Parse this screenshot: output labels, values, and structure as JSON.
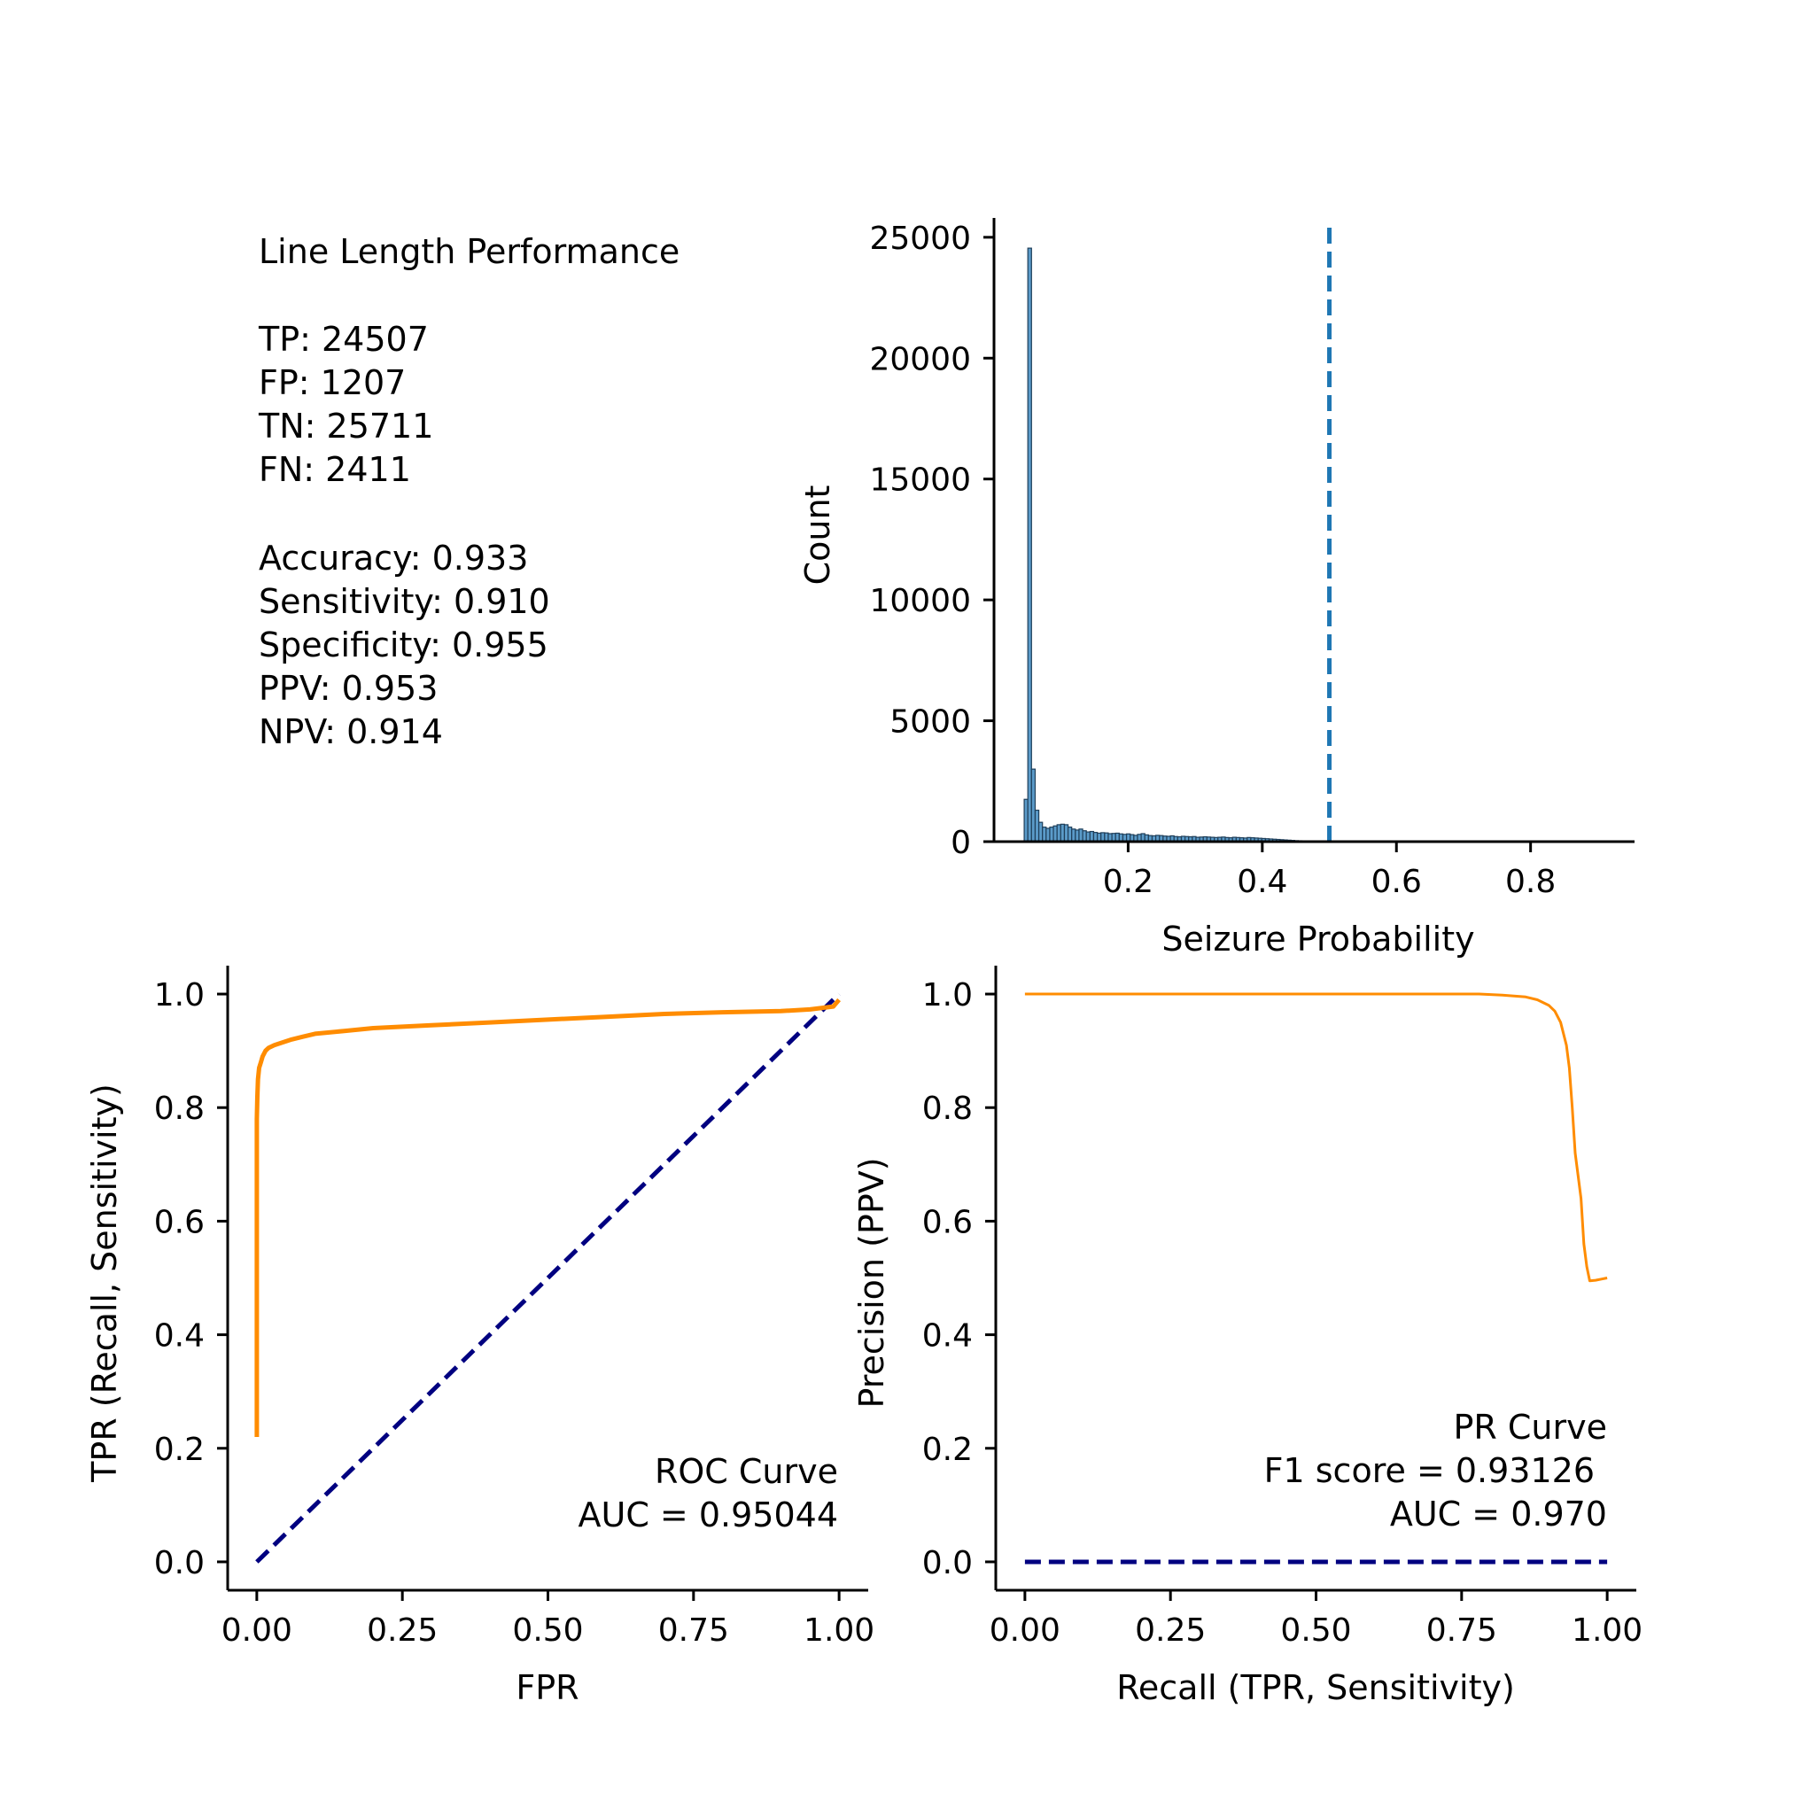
{
  "stats": {
    "title": "Line Length Performance",
    "counts": [
      "TP: 24507",
      "FP: 1207",
      "TN: 25711",
      "FN: 2411"
    ],
    "metrics": [
      "Accuracy: 0.933",
      "Sensitivity: 0.910",
      "Specificity: 0.955",
      "PPV: 0.953",
      "NPV: 0.914"
    ]
  },
  "colors": {
    "hist_fill": "#5b9bc9",
    "hist_edge": "#1f3f5a",
    "threshold": "#1f77b4",
    "curve": "#ff8c00",
    "chance": "#000080"
  },
  "chart_data": [
    {
      "type": "bar",
      "title": "",
      "xlabel": "Seizure Probability",
      "ylabel": "Count",
      "xlim": [
        0.0,
        0.955
      ],
      "ylim": [
        0,
        25800
      ],
      "xticks": [
        0.2,
        0.4,
        0.6,
        0.8
      ],
      "xtick_labels": [
        "0.2",
        "0.4",
        "0.6",
        "0.8"
      ],
      "yticks": [
        0,
        5000,
        10000,
        15000,
        20000,
        25000
      ],
      "ytick_labels": [
        "0",
        "5000",
        "10000",
        "15000",
        "20000",
        "25000"
      ],
      "threshold": 0.5,
      "bin_start": 0.045,
      "bin_width": 0.00545,
      "values": [
        1750,
        24550,
        3000,
        1300,
        800,
        600,
        550,
        600,
        650,
        700,
        720,
        700,
        600,
        520,
        480,
        520,
        450,
        400,
        420,
        380,
        350,
        370,
        360,
        330,
        340,
        350,
        320,
        300,
        320,
        290,
        260,
        300,
        330,
        280,
        250,
        240,
        260,
        250,
        230,
        220,
        240,
        210,
        200,
        220,
        210,
        200,
        210,
        180,
        190,
        200,
        190,
        180,
        170,
        180,
        190,
        170,
        160,
        180,
        170,
        160,
        150,
        170,
        160,
        150,
        140,
        130,
        120,
        110,
        100,
        90,
        80,
        70,
        60,
        50,
        40,
        35,
        30,
        25,
        20,
        15,
        12,
        10,
        8,
        6,
        5,
        4,
        3,
        3,
        2,
        2,
        2,
        1,
        1,
        1,
        1,
        1,
        1,
        1,
        1,
        1,
        1,
        1
      ]
    },
    {
      "type": "line",
      "title": "",
      "xlabel": "FPR",
      "ylabel": "TPR (Recall, Sensitivity)",
      "xlim": [
        -0.05,
        1.05
      ],
      "ylim": [
        -0.05,
        1.05
      ],
      "xticks": [
        0,
        0.25,
        0.5,
        0.75,
        1.0
      ],
      "xtick_labels": [
        "0.00",
        "0.25",
        "0.50",
        "0.75",
        "1.00"
      ],
      "yticks": [
        0,
        0.2,
        0.4,
        0.6,
        0.8,
        1.0
      ],
      "ytick_labels": [
        "0.0",
        "0.2",
        "0.4",
        "0.6",
        "0.8",
        "1.0"
      ],
      "annotations": [
        "ROC Curve",
        "AUC = 0.95044"
      ],
      "series": [
        {
          "x": [
            0,
            0,
            0.001,
            0.002,
            0.004,
            0.007,
            0.01,
            0.015,
            0.02,
            0.03,
            0.045,
            0.06,
            0.08,
            0.1,
            0.15,
            0.2,
            0.3,
            0.4,
            0.5,
            0.6,
            0.7,
            0.8,
            0.9,
            0.95,
            0.99,
            1.0
          ],
          "y": [
            0.22,
            0.78,
            0.82,
            0.85,
            0.87,
            0.88,
            0.89,
            0.9,
            0.905,
            0.91,
            0.915,
            0.92,
            0.925,
            0.93,
            0.935,
            0.94,
            0.945,
            0.95,
            0.955,
            0.96,
            0.965,
            0.968,
            0.97,
            0.973,
            0.978,
            0.99
          ]
        },
        {
          "x": [
            0,
            1
          ],
          "y": [
            0,
            1
          ]
        }
      ]
    },
    {
      "type": "line",
      "title": "",
      "xlabel": "Recall (TPR, Sensitivity)",
      "ylabel": "Precision (PPV)",
      "xlim": [
        -0.05,
        1.05
      ],
      "ylim": [
        -0.05,
        1.05
      ],
      "xticks": [
        0,
        0.25,
        0.5,
        0.75,
        1.0
      ],
      "xtick_labels": [
        "0.00",
        "0.25",
        "0.50",
        "0.75",
        "1.00"
      ],
      "yticks": [
        0,
        0.2,
        0.4,
        0.6,
        0.8,
        1.0
      ],
      "ytick_labels": [
        "0.0",
        "0.2",
        "0.4",
        "0.6",
        "0.8",
        "1.0"
      ],
      "annotations": [
        "PR Curve",
        "F1 score = 0.93126",
        "AUC = 0.970"
      ],
      "series": [
        {
          "x": [
            0,
            0.2,
            0.5,
            0.7,
            0.78,
            0.82,
            0.86,
            0.88,
            0.9,
            0.91,
            0.92,
            0.93,
            0.935,
            0.94,
            0.945,
            0.95,
            0.955,
            0.96,
            0.965,
            0.97,
            0.98,
            0.99,
            1.0
          ],
          "y": [
            1.0,
            1.0,
            1.0,
            1.0,
            1.0,
            0.998,
            0.995,
            0.99,
            0.98,
            0.97,
            0.95,
            0.91,
            0.87,
            0.8,
            0.72,
            0.68,
            0.64,
            0.56,
            0.52,
            0.495,
            0.496,
            0.498,
            0.5
          ]
        },
        {
          "x": [
            0,
            1
          ],
          "y": [
            0,
            0
          ]
        }
      ]
    }
  ]
}
